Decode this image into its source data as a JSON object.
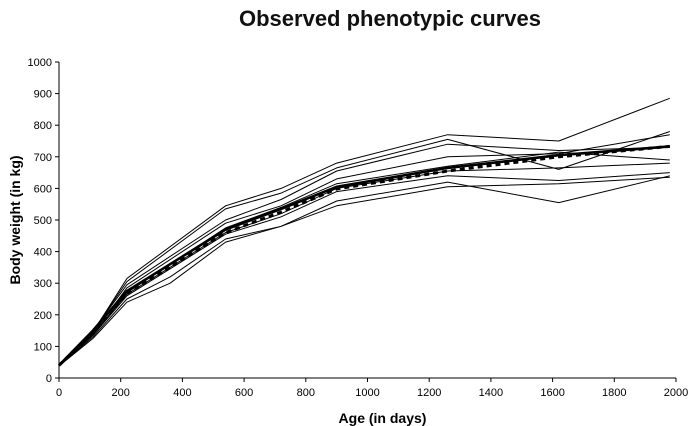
{
  "chart_data": {
    "type": "line",
    "title": "Observed phenotypic curves",
    "xlabel": "Age (in days)",
    "ylabel": "Body weight (in kg)",
    "xlim": [
      0,
      2000
    ],
    "ylim": [
      0,
      1000
    ],
    "x_ticks": [
      "0",
      "200",
      "400",
      "600",
      "800",
      "1000",
      "1200",
      "1400",
      "1600",
      "1800",
      "2000"
    ],
    "y_ticks": [
      "0",
      "100",
      "200",
      "300",
      "400",
      "500",
      "600",
      "700",
      "800",
      "900",
      "1000"
    ],
    "grid": false,
    "legend": "none",
    "series": [
      {
        "style": "thin",
        "points": [
          [
            0,
            40
          ],
          [
            110,
            145
          ],
          [
            220,
            315
          ],
          [
            540,
            545
          ],
          [
            720,
            600
          ],
          [
            900,
            680
          ],
          [
            1260,
            770
          ],
          [
            1620,
            750
          ],
          [
            1980,
            885
          ]
        ]
      },
      {
        "style": "thin",
        "points": [
          [
            0,
            38
          ],
          [
            110,
            148
          ],
          [
            220,
            305
          ],
          [
            540,
            535
          ],
          [
            720,
            585
          ],
          [
            900,
            665
          ],
          [
            1260,
            755
          ],
          [
            1620,
            660
          ],
          [
            1980,
            780
          ]
        ]
      },
      {
        "style": "thin",
        "points": [
          [
            0,
            40
          ],
          [
            110,
            150
          ],
          [
            220,
            295
          ],
          [
            540,
            500
          ],
          [
            720,
            565
          ],
          [
            900,
            655
          ],
          [
            1260,
            740
          ],
          [
            1620,
            720
          ],
          [
            1980,
            730
          ]
        ]
      },
      {
        "style": "thin",
        "points": [
          [
            0,
            40
          ],
          [
            110,
            140
          ],
          [
            220,
            285
          ],
          [
            540,
            490
          ],
          [
            720,
            545
          ],
          [
            900,
            630
          ],
          [
            1260,
            700
          ],
          [
            1620,
            710
          ],
          [
            1980,
            770
          ]
        ]
      },
      {
        "style": "thin",
        "points": [
          [
            0,
            40
          ],
          [
            110,
            135
          ],
          [
            220,
            270
          ],
          [
            540,
            475
          ],
          [
            720,
            540
          ],
          [
            900,
            615
          ],
          [
            1260,
            670
          ],
          [
            1620,
            715
          ],
          [
            1980,
            690
          ]
        ]
      },
      {
        "style": "thin",
        "points": [
          [
            0,
            40
          ],
          [
            110,
            140
          ],
          [
            220,
            265
          ],
          [
            540,
            460
          ],
          [
            720,
            520
          ],
          [
            900,
            600
          ],
          [
            1260,
            655
          ],
          [
            1620,
            665
          ],
          [
            1980,
            680
          ]
        ]
      },
      {
        "style": "thin",
        "points": [
          [
            0,
            38
          ],
          [
            110,
            135
          ],
          [
            220,
            260
          ],
          [
            540,
            455
          ],
          [
            720,
            510
          ],
          [
            900,
            590
          ],
          [
            1260,
            640
          ],
          [
            1620,
            625
          ],
          [
            1980,
            650
          ]
        ]
      },
      {
        "style": "thin",
        "points": [
          [
            0,
            38
          ],
          [
            110,
            130
          ],
          [
            220,
            250
          ],
          [
            360,
            320
          ],
          [
            540,
            440
          ],
          [
            720,
            480
          ],
          [
            900,
            560
          ],
          [
            1260,
            620
          ],
          [
            1620,
            555
          ],
          [
            1980,
            640
          ]
        ]
      },
      {
        "style": "thin",
        "points": [
          [
            0,
            38
          ],
          [
            110,
            125
          ],
          [
            220,
            240
          ],
          [
            360,
            300
          ],
          [
            540,
            430
          ],
          [
            720,
            480
          ],
          [
            900,
            545
          ],
          [
            1260,
            605
          ],
          [
            1620,
            615
          ],
          [
            1980,
            635
          ]
        ]
      },
      {
        "style": "thick",
        "points": [
          [
            0,
            40
          ],
          [
            110,
            150
          ],
          [
            220,
            275
          ],
          [
            360,
            360
          ],
          [
            540,
            470
          ],
          [
            720,
            535
          ],
          [
            900,
            605
          ],
          [
            1260,
            665
          ],
          [
            1620,
            705
          ],
          [
            1980,
            733
          ]
        ]
      },
      {
        "style": "thick-dashed",
        "points": [
          [
            0,
            40
          ],
          [
            110,
            145
          ],
          [
            220,
            268
          ],
          [
            360,
            352
          ],
          [
            540,
            460
          ],
          [
            720,
            525
          ],
          [
            900,
            598
          ],
          [
            1260,
            655
          ],
          [
            1620,
            700
          ],
          [
            1980,
            733
          ]
        ]
      }
    ]
  }
}
